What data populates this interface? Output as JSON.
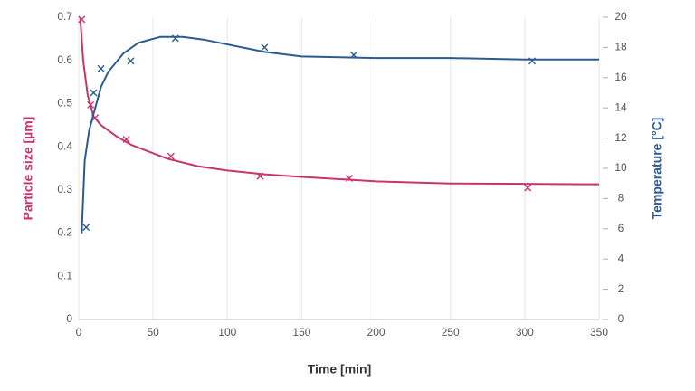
{
  "chart_data": {
    "type": "scatter-fit",
    "xlabel": "Time [min]",
    "ylabel": "Particle size [µm]",
    "y2label": "Temperature [°C]",
    "ylabel_color": "#c8346c",
    "y2label_color": "#2c5b91",
    "xlim": [
      0,
      350
    ],
    "xticks": [
      0,
      50,
      100,
      150,
      200,
      250,
      300,
      350
    ],
    "ylim": [
      0,
      0.7
    ],
    "yticks": [
      0,
      0.1,
      0.2,
      0.3,
      0.4,
      0.5,
      0.6,
      0.7
    ],
    "y2lim": [
      0,
      20
    ],
    "y2ticks": [
      0,
      2,
      4,
      6,
      8,
      10,
      12,
      14,
      16,
      18,
      20
    ],
    "grid": "x",
    "series": [
      {
        "color": "#c8346c",
        "style": "markers",
        "x": [
          2,
          8,
          11,
          32,
          62,
          122,
          182,
          302
        ],
        "values": [
          0.695,
          0.497,
          0.467,
          0.417,
          0.378,
          0.332,
          0.327,
          0.305
        ]
      },
      {
        "color": "#c8346c",
        "style": "line",
        "x": [
          1,
          3,
          6,
          10,
          15,
          25,
          35,
          50,
          60,
          80,
          100,
          125,
          150,
          200,
          250,
          300,
          350
        ],
        "values": [
          0.7,
          0.6,
          0.52,
          0.47,
          0.45,
          0.425,
          0.405,
          0.385,
          0.372,
          0.355,
          0.345,
          0.336,
          0.33,
          0.32,
          0.315,
          0.314,
          0.313
        ]
      },
      {
        "color": "#2c5b91",
        "style": "markers",
        "axis": "y2",
        "x": [
          5,
          10,
          15,
          35,
          65,
          125,
          185,
          305
        ],
        "values": [
          6.1,
          15.0,
          16.6,
          17.1,
          18.6,
          18.0,
          17.5,
          17.1
        ]
      },
      {
        "color": "#2c5b91",
        "style": "line",
        "axis": "y2",
        "x": [
          2,
          4,
          7,
          10,
          15,
          20,
          30,
          40,
          55,
          70,
          85,
          100,
          125,
          150,
          200,
          250,
          300,
          350
        ],
        "values": [
          5.7,
          10.5,
          12.5,
          13.6,
          15.4,
          16.4,
          17.6,
          18.3,
          18.7,
          18.7,
          18.5,
          18.2,
          17.7,
          17.4,
          17.3,
          17.3,
          17.2,
          17.2
        ]
      }
    ]
  }
}
